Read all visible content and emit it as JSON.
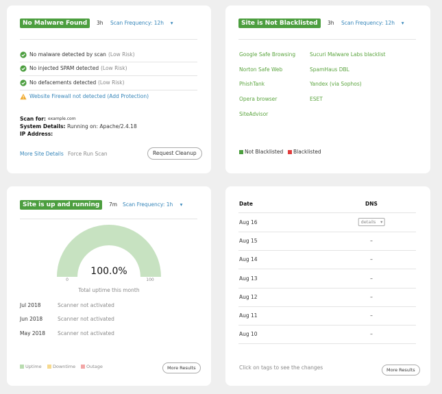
{
  "malware_card": {
    "badge": "No Malware Found",
    "age": "3h",
    "frequency": "Scan Frequency: 12h",
    "checks": [
      {
        "text": "No malware detected by scan",
        "risk": "(Low Risk)",
        "status": "ok"
      },
      {
        "text": "No injected SPAM detected",
        "risk": "(Low Risk)",
        "status": "ok"
      },
      {
        "text": "No defacements detected",
        "risk": "(Low Risk)",
        "status": "ok"
      },
      {
        "text": "Website Firewall not detected (Add Protection)",
        "status": "warn"
      }
    ],
    "details": [
      {
        "label": "Scan for:",
        "value": "example.com"
      },
      {
        "label": "System Details:",
        "value": "Running on: Apache/2.4.18"
      },
      {
        "label": "IP Address:"
      }
    ],
    "links": [
      "More Site Details",
      "Force Run Scan"
    ],
    "button": "Request Cleanup"
  },
  "blacklist_card": {
    "badge": "Site is Not Blacklisted",
    "age": "3h",
    "frequency": "Scan Frequency: 12h",
    "sources": [
      [
        "Google Safe Browsing",
        "Norton Safe Web",
        "PhishTank",
        "Opera browser",
        "SiteAdvisor"
      ],
      [
        "Sucuri Malware Labs blacklist",
        "SpamHaus DBL",
        "Yandex (via Sophos)",
        "ESET"
      ]
    ],
    "legend": [
      {
        "name": "Not Blacklisted",
        "color": "#4c9e3f"
      },
      {
        "name": "Blacklisted",
        "color": "#e03c3c"
      }
    ]
  },
  "uptime_card": {
    "badge": "Site is up and running",
    "age": "7m",
    "frequency": "Scan Frequency: 1h",
    "gauge": {
      "value": 100,
      "value_label": "100.0%",
      "min": 0,
      "max": 100,
      "color": "#c7e2c1"
    },
    "caption": "Total uptime this month",
    "history": [
      {
        "month": "Jul 2018",
        "status": "Scanner not activated"
      },
      {
        "month": "Jun 2018",
        "status": "Scanner not activated"
      },
      {
        "month": "May 2018",
        "status": "Scanner not activated"
      }
    ],
    "legend": [
      {
        "name": "Uptime",
        "color": "#b9dcb0"
      },
      {
        "name": "Downtime",
        "color": "#f6d98e"
      },
      {
        "name": "Outage",
        "color": "#f2a6a6"
      }
    ],
    "button": "More Results"
  },
  "dns_card": {
    "columns": [
      "Date",
      "DNS"
    ],
    "rows": [
      {
        "date": "Aug 16",
        "dns": "details"
      },
      {
        "date": "Aug 15",
        "dns": "–"
      },
      {
        "date": "Aug 14",
        "dns": "–"
      },
      {
        "date": "Aug 13",
        "dns": "–"
      },
      {
        "date": "Aug 12",
        "dns": "–"
      },
      {
        "date": "Aug 11",
        "dns": "–"
      },
      {
        "date": "Aug 10",
        "dns": "–"
      }
    ],
    "note": "Click on tags to see the changes",
    "button": "More Results"
  }
}
